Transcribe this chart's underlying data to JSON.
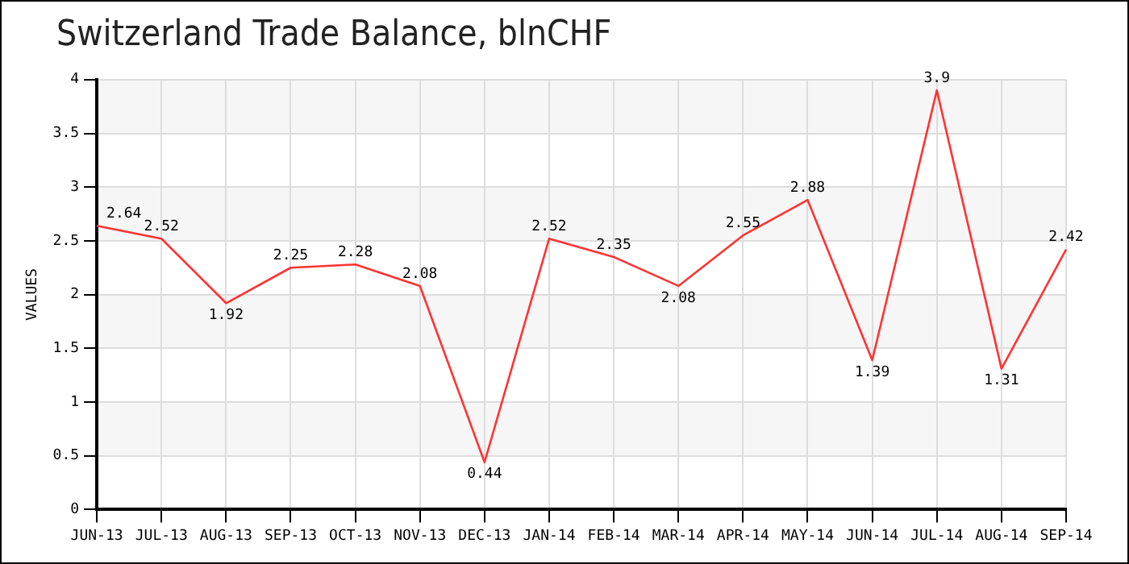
{
  "chart_data": {
    "type": "line",
    "title": "Switzerland Trade Balance, blnCHF",
    "ylabel": "VALUES",
    "categories": [
      "JUN-13",
      "JUL-13",
      "AUG-13",
      "SEP-13",
      "OCT-13",
      "NOV-13",
      "DEC-13",
      "JAN-14",
      "FEB-14",
      "MAR-14",
      "APR-14",
      "MAY-14",
      "JUN-14",
      "JUL-14",
      "AUG-14",
      "SEP-14"
    ],
    "series": [
      {
        "color": "#ff3333",
        "values": [
          2.64,
          2.52,
          1.92,
          2.25,
          2.28,
          2.08,
          0.44,
          2.52,
          2.35,
          2.08,
          2.55,
          2.88,
          1.39,
          3.9,
          1.31,
          2.42
        ]
      }
    ],
    "ylim": [
      0,
      4
    ],
    "yticks": [
      0,
      0.5,
      1,
      1.5,
      2,
      2.5,
      3,
      3.5,
      4
    ],
    "grid": true,
    "data_labels": true,
    "legend": false,
    "marker": "none",
    "line_style": "solid"
  }
}
